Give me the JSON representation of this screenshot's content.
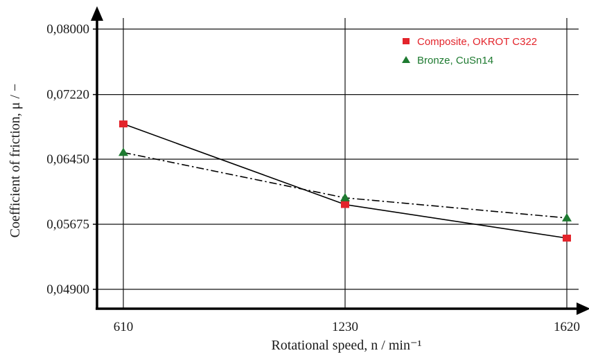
{
  "chart_data": {
    "type": "line",
    "x": [
      610,
      1230,
      1620
    ],
    "x_tick_labels": [
      "610",
      "1230",
      "1620"
    ],
    "xlabel": "Rotational speed, n / min⁻¹",
    "ylabel": "Coefficient of friction, μ / −",
    "y_tick_values": [
      0.049,
      0.05675,
      0.0645,
      0.0722,
      0.08
    ],
    "y_tick_labels": [
      "0,04900",
      "0,05675",
      "0,06450",
      "0,07220",
      "0,08000"
    ],
    "ylim": [
      0.049,
      0.08
    ],
    "grid": true,
    "legend_position": "top-right",
    "series": [
      {
        "name": "Composite, OKROT C322",
        "marker": "square",
        "line_style": "solid",
        "color": "#e3242b",
        "values": [
          0.0687,
          0.0591,
          0.0551
        ]
      },
      {
        "name": "Bronze, CuSn14",
        "marker": "triangle",
        "line_style": "dash-dot",
        "color": "#1e7a30",
        "values": [
          0.0653,
          0.0599,
          0.0575
        ]
      }
    ]
  }
}
